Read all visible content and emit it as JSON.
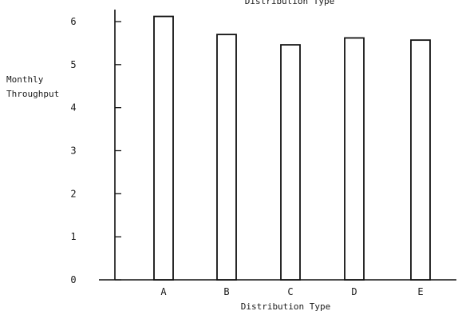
{
  "chart_data": {
    "type": "bar",
    "title": "Distribution Type",
    "xlabel": "Distribution Type",
    "ylabel": [
      "Monthly",
      "Throughput"
    ],
    "categories": [
      "A",
      "B",
      "C",
      "D",
      "E"
    ],
    "values": [
      6.12,
      5.7,
      5.46,
      5.62,
      5.57
    ],
    "ylim": [
      0,
      6
    ],
    "yticks": [
      "0",
      "1",
      "2",
      "3",
      "4",
      "5",
      "6"
    ],
    "grid": false,
    "colors": {
      "bar_fill": "#ffffff",
      "bar_stroke": "#111111"
    }
  }
}
